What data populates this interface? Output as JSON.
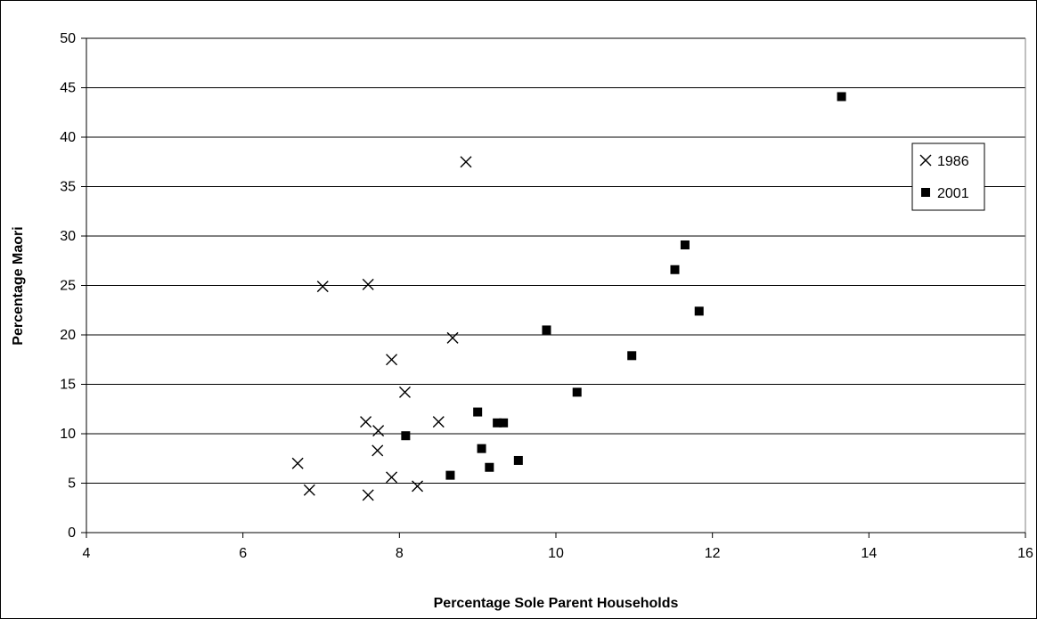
{
  "chart_data": {
    "type": "scatter",
    "title": "",
    "xlabel": "Percentage Sole Parent Households",
    "ylabel": "Percentage Maori",
    "xlim": [
      4,
      16
    ],
    "ylim": [
      0,
      50
    ],
    "xticks": [
      4,
      6,
      8,
      10,
      12,
      14,
      16
    ],
    "yticks": [
      0,
      5,
      10,
      15,
      20,
      25,
      30,
      35,
      40,
      45,
      50
    ],
    "grid": "horizontal",
    "legend_position": "right",
    "series": [
      {
        "name": "1986",
        "marker": "x",
        "color": "#000000",
        "points": [
          [
            6.7,
            7.0
          ],
          [
            6.85,
            4.3
          ],
          [
            7.02,
            24.9
          ],
          [
            7.57,
            11.2
          ],
          [
            7.6,
            25.1
          ],
          [
            7.6,
            3.8
          ],
          [
            7.72,
            8.3
          ],
          [
            7.73,
            10.3
          ],
          [
            7.9,
            17.5
          ],
          [
            7.9,
            5.6
          ],
          [
            8.07,
            14.2
          ],
          [
            8.23,
            4.7
          ],
          [
            8.5,
            11.2
          ],
          [
            8.68,
            19.7
          ],
          [
            8.85,
            37.5
          ]
        ]
      },
      {
        "name": "2001",
        "marker": "square",
        "color": "#000000",
        "points": [
          [
            8.08,
            9.8
          ],
          [
            8.65,
            5.8
          ],
          [
            9.0,
            12.2
          ],
          [
            9.05,
            8.5
          ],
          [
            9.15,
            6.6
          ],
          [
            9.25,
            11.1
          ],
          [
            9.33,
            11.1
          ],
          [
            9.52,
            7.3
          ],
          [
            9.88,
            20.5
          ],
          [
            10.27,
            14.2
          ],
          [
            10.97,
            17.9
          ],
          [
            11.52,
            26.6
          ],
          [
            11.65,
            29.1
          ],
          [
            11.83,
            22.4
          ],
          [
            13.65,
            44.1
          ]
        ]
      }
    ]
  }
}
